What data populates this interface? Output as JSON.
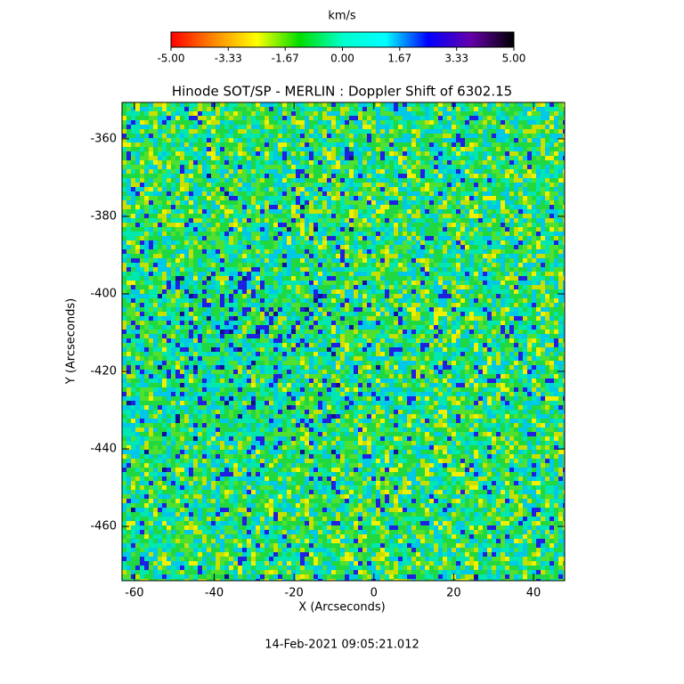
{
  "chart_data": {
    "type": "heatmap",
    "title": "Hinode SOT/SP - MERLIN : Doppler Shift of 6302.15",
    "colorbar_label": "km/s",
    "colormap": [
      "#ff0000",
      "#ff8800",
      "#ffff00",
      "#00dd00",
      "#00ffcc",
      "#00ffff",
      "#0000ff",
      "#6600aa",
      "#000000"
    ],
    "colorbar_lim": [
      -5,
      5
    ],
    "colorbar_ticks": [
      {
        "value": -5,
        "label": "-5.00"
      },
      {
        "value": -3.33,
        "label": "-3.33"
      },
      {
        "value": -1.67,
        "label": "-1.67"
      },
      {
        "value": 0,
        "label": "0.00"
      },
      {
        "value": 1.67,
        "label": "1.67"
      },
      {
        "value": 3.33,
        "label": "3.33"
      },
      {
        "value": 5,
        "label": "5.00"
      }
    ],
    "x_label": "X (Arcseconds)",
    "y_label": "Y (Arcseconds)",
    "xlim": [
      -63.1,
      47.8
    ],
    "xticks": [
      -60,
      -40,
      -20,
      0,
      20,
      40
    ],
    "ylim": [
      -474.0,
      -350.6
    ],
    "yticks": [
      -360,
      -380,
      -400,
      -420,
      -440,
      -460
    ],
    "footer": "14-Feb-2021 09:05:21.012"
  }
}
